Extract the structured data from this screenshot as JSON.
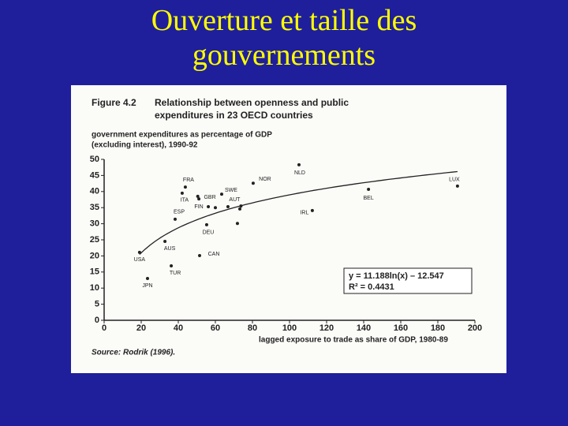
{
  "slide": {
    "title": "Ouverture et taille des gouvernements"
  },
  "chart_data": {
    "type": "scatter",
    "figure_number": "Figure 4.2",
    "title_lines": [
      "Relationship between openness and public",
      "expenditures in 23 OECD countries"
    ],
    "y_label_lines": [
      "government expenditures as percentage of GDP",
      "(excluding interest), 1990-92"
    ],
    "x_label": "lagged exposure to trade as share of GDP, 1980-89",
    "source": "Source: Rodrik (1996).",
    "equation": "y = 11.188ln(x) – 12.547",
    "r_squared": "R² = 0.4431",
    "trendline": {
      "type": "log",
      "a": 11.188,
      "b": -12.547
    },
    "labels": [
      "USA",
      "JPN",
      "AUS",
      "TUR",
      "ESP",
      "ITA",
      "FRA",
      "GBR",
      "FIN",
      "DEU",
      "CAN",
      "SWE",
      "AUT",
      "NOR",
      "NLD",
      "BEL",
      "LUX",
      "IRL",
      null,
      null,
      null,
      null,
      null
    ],
    "x": [
      19.1,
      23.4,
      32.8,
      36.2,
      38.3,
      42.1,
      43.8,
      51.1,
      56.2,
      55.3,
      51.5,
      63.4,
      73.8,
      80.4,
      105.1,
      142.6,
      190.6,
      112.3,
      60.0,
      66.8,
      71.9,
      73.2,
      50.5
    ],
    "values": [
      21.1,
      13.0,
      24.5,
      16.9,
      31.4,
      39.5,
      41.4,
      37.7,
      35.3,
      29.7,
      20.1,
      39.2,
      35.5,
      42.6,
      48.3,
      40.7,
      41.7,
      34.1,
      35.0,
      35.3,
      30.1,
      34.6,
      38.5
    ],
    "color": "#222222",
    "xlim": [
      0,
      200
    ],
    "xticks": [
      0,
      20,
      40,
      60,
      80,
      100,
      120,
      140,
      160,
      180,
      200
    ],
    "ylim": [
      0,
      50
    ],
    "yticks": [
      0,
      5,
      10,
      15,
      20,
      25,
      30,
      35,
      40,
      45,
      50
    ]
  }
}
